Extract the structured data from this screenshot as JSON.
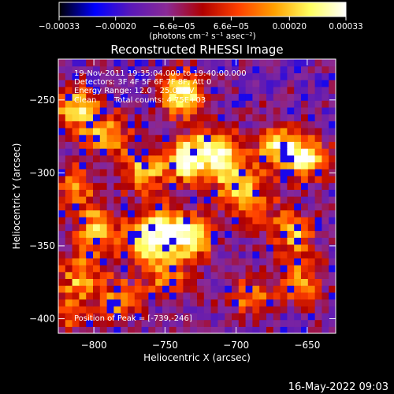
{
  "chart_data": {
    "type": "heatmap",
    "title": "Reconstructed RHESSI Image",
    "xlabel": "Heliocentric X (arcsec)",
    "ylabel": "Heliocentric Y (arcsec)",
    "xlim": [
      -825,
      -630
    ],
    "ylim": [
      -410,
      -222
    ],
    "x_ticks": [
      -800,
      -750,
      -700,
      -650
    ],
    "y_ticks": [
      -400,
      -350,
      -300,
      -250
    ],
    "x_tick_labels": [
      "−800",
      "−750",
      "−700",
      "−650"
    ],
    "y_tick_labels": [
      "−400",
      "−350",
      "−300",
      "−250"
    ],
    "grid": false,
    "colorbar": {
      "range": [
        -0.00033,
        0.00033
      ],
      "tick_values": [
        -0.00033,
        -0.0002,
        -6.6e-05,
        6.6e-05,
        0.0002,
        0.00033
      ],
      "tick_labels": [
        "−0.00033",
        "−0.00020",
        "−6.6e−05",
        "6.6e−05",
        "0.00020",
        "0.00033"
      ],
      "unit_label": "(photons cm⁻² s⁻¹ asec⁻²)",
      "colormap": [
        "#000000",
        "#0000ff",
        "#5a18b8",
        "#8a2a96",
        "#b00000",
        "#ff4000",
        "#ffa000",
        "#ffff60",
        "#ffffff"
      ]
    },
    "annotations": {
      "time_range": "19-Nov-2011 19:35:04.000 to 19:40:00.000",
      "detectors": "Detectors: 3F 4F 5F 6F 7F 8F, Att 0",
      "energy_range": "Energy Range: 12.0 - 25.0 keV",
      "clean_label": "Clean",
      "total_counts": "Total counts: 4.75E+03",
      "peak_position": "Position of Peak = [-739,-246]"
    },
    "peak": {
      "x": -739,
      "y": -246
    },
    "grid_cols": 40,
    "grid_rows": 40,
    "hotspots": [
      {
        "x": -739,
        "y": -246,
        "w": 1.0
      },
      {
        "x": -812,
        "y": -256,
        "w": 0.85
      },
      {
        "x": -790,
        "y": -275,
        "w": 0.7
      },
      {
        "x": -765,
        "y": -300,
        "w": 0.75
      },
      {
        "x": -735,
        "y": -292,
        "w": 0.95
      },
      {
        "x": -715,
        "y": -283,
        "w": 0.8
      },
      {
        "x": -702,
        "y": -302,
        "w": 0.7
      },
      {
        "x": -670,
        "y": -283,
        "w": 0.85
      },
      {
        "x": -650,
        "y": -290,
        "w": 0.8
      },
      {
        "x": -812,
        "y": -310,
        "w": 0.6
      },
      {
        "x": -798,
        "y": -340,
        "w": 0.75
      },
      {
        "x": -765,
        "y": -345,
        "w": 0.95
      },
      {
        "x": -745,
        "y": -340,
        "w": 0.85
      },
      {
        "x": -728,
        "y": -345,
        "w": 0.7
      },
      {
        "x": -808,
        "y": -370,
        "w": 0.65
      },
      {
        "x": -782,
        "y": -388,
        "w": 0.6
      },
      {
        "x": -748,
        "y": -372,
        "w": 0.55
      },
      {
        "x": -690,
        "y": -322,
        "w": 0.6
      },
      {
        "x": -660,
        "y": -340,
        "w": 0.7
      },
      {
        "x": -655,
        "y": -375,
        "w": 0.65
      },
      {
        "x": -690,
        "y": -385,
        "w": 0.5
      },
      {
        "x": -820,
        "y": -395,
        "w": 0.55
      }
    ]
  },
  "footer": {
    "date_stamp": "16-May-2022 09:03"
  }
}
